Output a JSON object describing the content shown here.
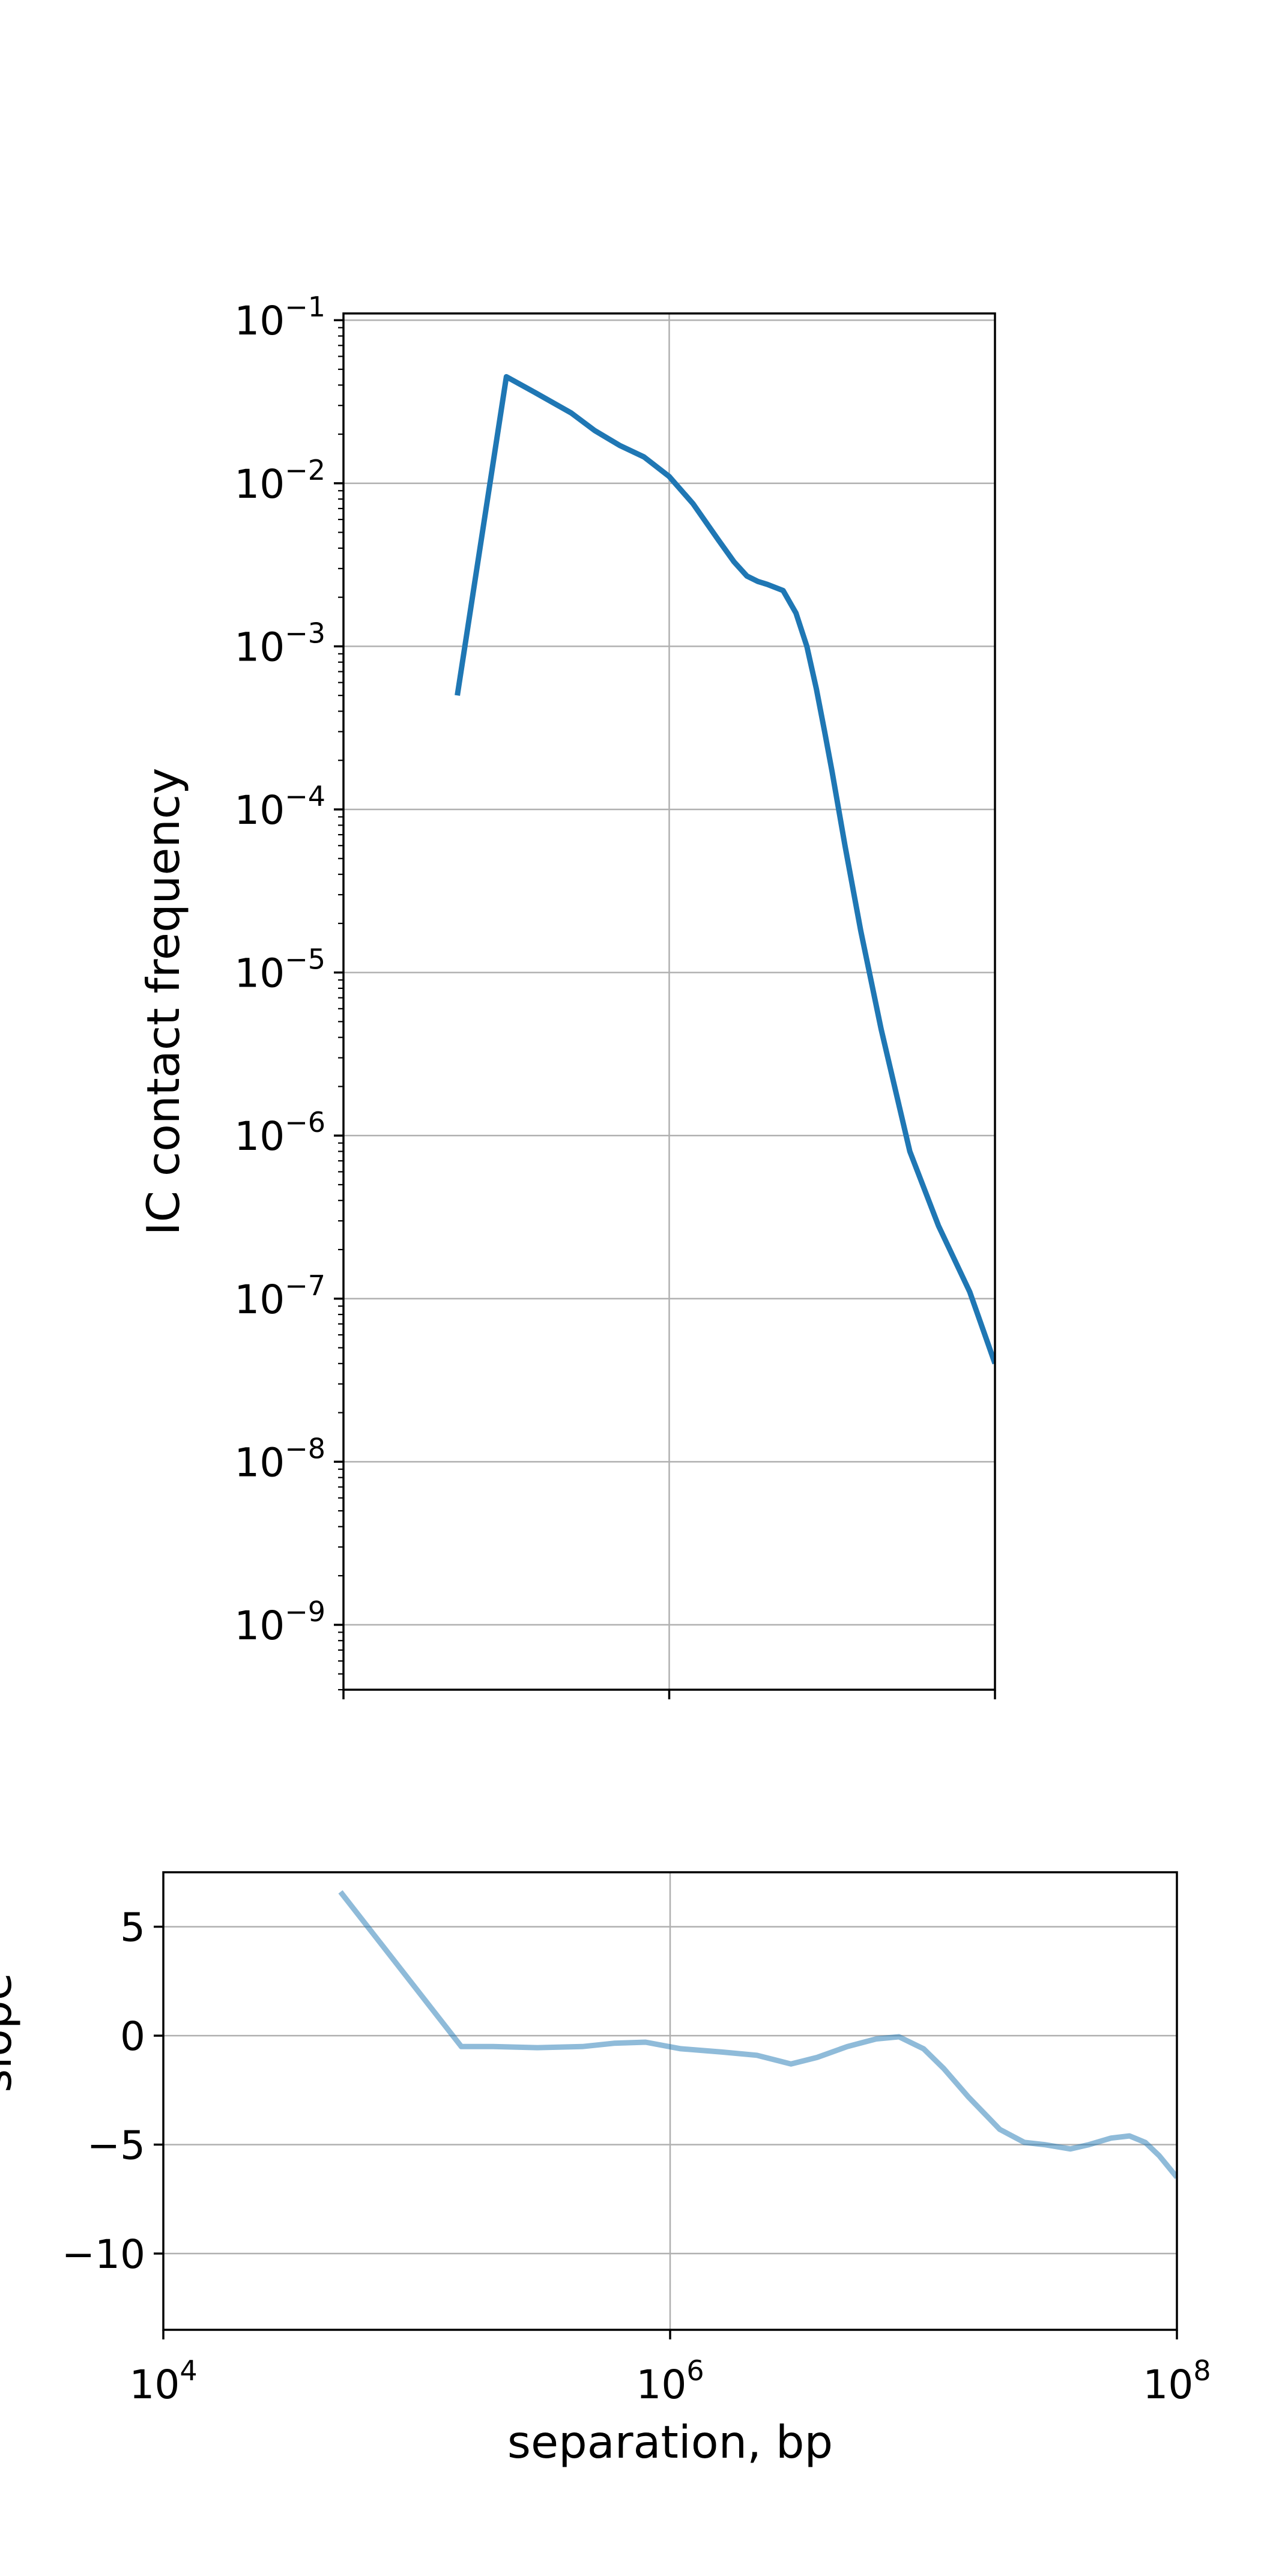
{
  "chart_data": [
    {
      "type": "line",
      "xscale": "log",
      "yscale": "log",
      "xlim": [
        10000,
        100000000
      ],
      "ylim": [
        4e-10,
        0.11
      ],
      "ylabel": "IC contact frequency",
      "xlabel": "",
      "grid": true,
      "x_ticks": [
        10000,
        1000000,
        100000000
      ],
      "x_tick_labels_visible": false,
      "y_tick_labels": [
        {
          "value": 1e-09,
          "base": "10",
          "exp": "−9"
        },
        {
          "value": 1e-08,
          "base": "10",
          "exp": "−8"
        },
        {
          "value": 1e-07,
          "base": "10",
          "exp": "−7"
        },
        {
          "value": 1e-06,
          "base": "10",
          "exp": "−6"
        },
        {
          "value": 1e-05,
          "base": "10",
          "exp": "−5"
        },
        {
          "value": 0.0001,
          "base": "10",
          "exp": "−4"
        },
        {
          "value": 0.001,
          "base": "10",
          "exp": "−3"
        },
        {
          "value": 0.01,
          "base": "10",
          "exp": "−2"
        },
        {
          "value": 0.1,
          "base": "10",
          "exp": "−1"
        }
      ],
      "series": [
        {
          "color": "#1f77b4",
          "opacity": 1.0,
          "x": [
            50000,
            100000,
            150000,
            250000,
            350000,
            500000,
            700000,
            1000000,
            1400000,
            2000000,
            2500000,
            3000000,
            3500000,
            4000000,
            5000000,
            6000000,
            7000000,
            8000000,
            9000000,
            10000000,
            12000000,
            15000000,
            20000000,
            30000000,
            45000000,
            70000000,
            100000000
          ],
          "y": [
            0.0005,
            0.045,
            0.036,
            0.027,
            0.021,
            0.017,
            0.0145,
            0.011,
            0.0075,
            0.0045,
            0.0033,
            0.0027,
            0.0025,
            0.0024,
            0.0022,
            0.0016,
            0.001,
            0.00055,
            0.0003,
            0.00017,
            6e-05,
            1.8e-05,
            4.5e-06,
            8e-07,
            2.8e-07,
            1.1e-07,
            4e-08
          ]
        }
      ]
    },
    {
      "type": "line",
      "xscale": "log",
      "yscale": "linear",
      "xlim": [
        10000,
        100000000
      ],
      "ylim": [
        -13.5,
        7.5
      ],
      "ylabel": "slope",
      "xlabel": "separation, bp",
      "grid": true,
      "x_tick_labels": [
        {
          "value": 10000,
          "base": "10",
          "exp": "4"
        },
        {
          "value": 1000000,
          "base": "10",
          "exp": "6"
        },
        {
          "value": 100000000,
          "base": "10",
          "exp": "8"
        }
      ],
      "y_tick_labels": [
        {
          "value": 5,
          "label": "5"
        },
        {
          "value": 0,
          "label": "0"
        },
        {
          "value": -5,
          "label": "−5"
        },
        {
          "value": -10,
          "label": "−10"
        }
      ],
      "series": [
        {
          "color": "#1f77b4",
          "opacity": 0.5,
          "x": [
            50000,
            150000,
            200000,
            300000,
            450000,
            600000,
            800000,
            1100000,
            1600000,
            2200000,
            3000000,
            3800000,
            5000000,
            6500000,
            8000000,
            10000000,
            12000000,
            15000000,
            20000000,
            25000000,
            30000000,
            38000000,
            45000000,
            55000000,
            65000000,
            75000000,
            85000000,
            100000000
          ],
          "y": [
            6.6,
            -0.5,
            -0.5,
            -0.55,
            -0.5,
            -0.35,
            -0.3,
            -0.6,
            -0.75,
            -0.9,
            -1.3,
            -1.0,
            -0.5,
            -0.15,
            -0.05,
            -0.6,
            -1.5,
            -2.8,
            -4.3,
            -4.9,
            -5.0,
            -5.2,
            -5.0,
            -4.7,
            -4.6,
            -4.9,
            -5.5,
            -6.5
          ]
        }
      ]
    }
  ]
}
